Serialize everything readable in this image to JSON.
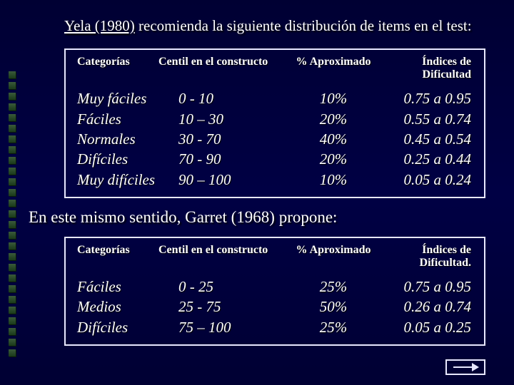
{
  "intro1_a": "Yela (1980)",
  "intro1_b": " recomienda la siguiente distribución de items en el test:",
  "intro2_a": "En este mismo sentido, ",
  "intro2_b": "Garret (1968)",
  "intro2_c": " propone:",
  "headers": {
    "cat": "Categorías",
    "cent": "Centil en el constructo",
    "aprox": "% Aproximado",
    "ind1": "Índices de Dificultad",
    "ind2": "Índices de Dificultad."
  },
  "table1": [
    {
      "cat": "Muy fáciles",
      "cent": "0  - 10",
      "aprox": "10%",
      "ind": "0.75  a  0.95"
    },
    {
      "cat": "Fáciles",
      "cent": "10 – 30",
      "aprox": "20%",
      "ind": "0.55  a  0.74"
    },
    {
      "cat": "Normales",
      "cent": "30 -  70",
      "aprox": "40%",
      "ind": "0.45  a  0.54"
    },
    {
      "cat": "Difíciles",
      "cent": "70 -  90",
      "aprox": "20%",
      "ind": "0.25  a  0.44"
    },
    {
      "cat": "Muy difíciles",
      "cent": "90 – 100",
      "aprox": "10%",
      "ind": "0.05  a  0.24"
    }
  ],
  "table2": [
    {
      "cat": "Fáciles",
      "cent": "0  - 25",
      "aprox": "25%",
      "ind": "0.75  a  0.95"
    },
    {
      "cat": "Medios",
      "cent": "25 -  75",
      "aprox": "50%",
      "ind": "0.26  a  0.74"
    },
    {
      "cat": "Difíciles",
      "cent": "75 – 100",
      "aprox": "25%",
      "ind": "0.05  a  0.25"
    }
  ],
  "bullet_count": 27,
  "colors": {
    "bg_top": "#000033",
    "bg_mid": "#000044",
    "border": "#e8e8ff",
    "text": "#ffffff",
    "bullet_top": "#3a5a3a",
    "bullet_bot": "#1a3a1a"
  }
}
